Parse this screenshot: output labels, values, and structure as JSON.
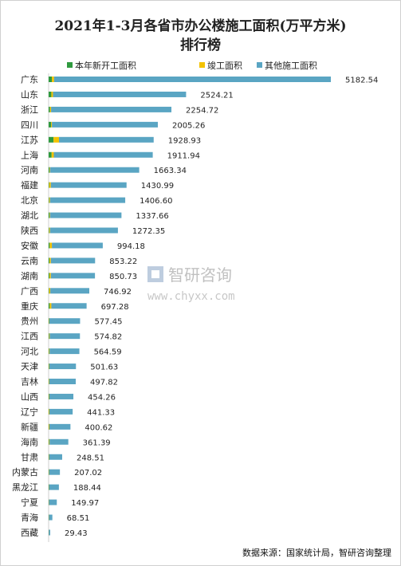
{
  "title_line1": "2021年1-3月各省市办公楼施工面积(万平方米)",
  "title_line2": "排行榜",
  "source": "数据来源：国家统计局，智研咨询整理",
  "watermark": {
    "brand": "智研咨询",
    "url": "www.chyxx.com"
  },
  "colors": {
    "new": "#2f9a3f",
    "completed": "#f3c200",
    "other": "#5aa5c3"
  },
  "chart_data": {
    "type": "bar",
    "orientation": "horizontal",
    "stacked": true,
    "legend_position": "top",
    "categories": [
      "广东",
      "山东",
      "浙江",
      "四川",
      "江苏",
      "上海",
      "河南",
      "福建",
      "北京",
      "湖北",
      "陕西",
      "安徽",
      "云南",
      "湖南",
      "广西",
      "重庆",
      "贵州",
      "江西",
      "河北",
      "天津",
      "吉林",
      "山西",
      "辽宁",
      "新疆",
      "海南",
      "甘肃",
      "内蒙古",
      "黑龙江",
      "宁夏",
      "青海",
      "西藏"
    ],
    "series": [
      {
        "name": "本年新开工面积",
        "color": "#2f9a3f",
        "values": [
          60,
          50,
          25,
          45,
          90,
          55,
          15,
          10,
          10,
          15,
          10,
          20,
          15,
          15,
          10,
          20,
          8,
          10,
          8,
          10,
          5,
          8,
          5,
          5,
          8,
          5,
          5,
          5,
          3,
          3,
          2
        ]
      },
      {
        "name": "竣工面积",
        "color": "#f3c200",
        "values": [
          40,
          30,
          20,
          15,
          100,
          40,
          10,
          30,
          15,
          10,
          15,
          40,
          25,
          25,
          20,
          30,
          5,
          10,
          10,
          5,
          8,
          5,
          10,
          10,
          10,
          5,
          5,
          3,
          3,
          2,
          1
        ]
      },
      {
        "name": "其他施工面积",
        "color": "#5aa5c3",
        "values": [
          5082.54,
          2444.21,
          2209.72,
          1945.26,
          1738.93,
          1816.94,
          1638.34,
          1390.99,
          1381.6,
          1312.66,
          1247.35,
          934.18,
          813.22,
          810.73,
          716.92,
          647.28,
          564.45,
          554.82,
          546.59,
          486.63,
          484.82,
          441.26,
          426.33,
          385.62,
          343.39,
          238.51,
          197.02,
          180.44,
          143.97,
          63.51,
          26.43
        ]
      }
    ],
    "totals": [
      "5182.54",
      "2524.21",
      "2254.72",
      "2005.26",
      "1928.93",
      "1911.94",
      "1663.34",
      "1430.99",
      "1406.60",
      "1337.66",
      "1272.35",
      "994.18",
      "853.22",
      "850.73",
      "746.92",
      "697.28",
      "577.45",
      "574.82",
      "564.59",
      "501.63",
      "497.82",
      "454.26",
      "441.33",
      "400.62",
      "361.39",
      "248.51",
      "207.02",
      "188.44",
      "149.97",
      "68.51",
      "29.43"
    ],
    "xlim": [
      0,
      5182.54
    ]
  }
}
